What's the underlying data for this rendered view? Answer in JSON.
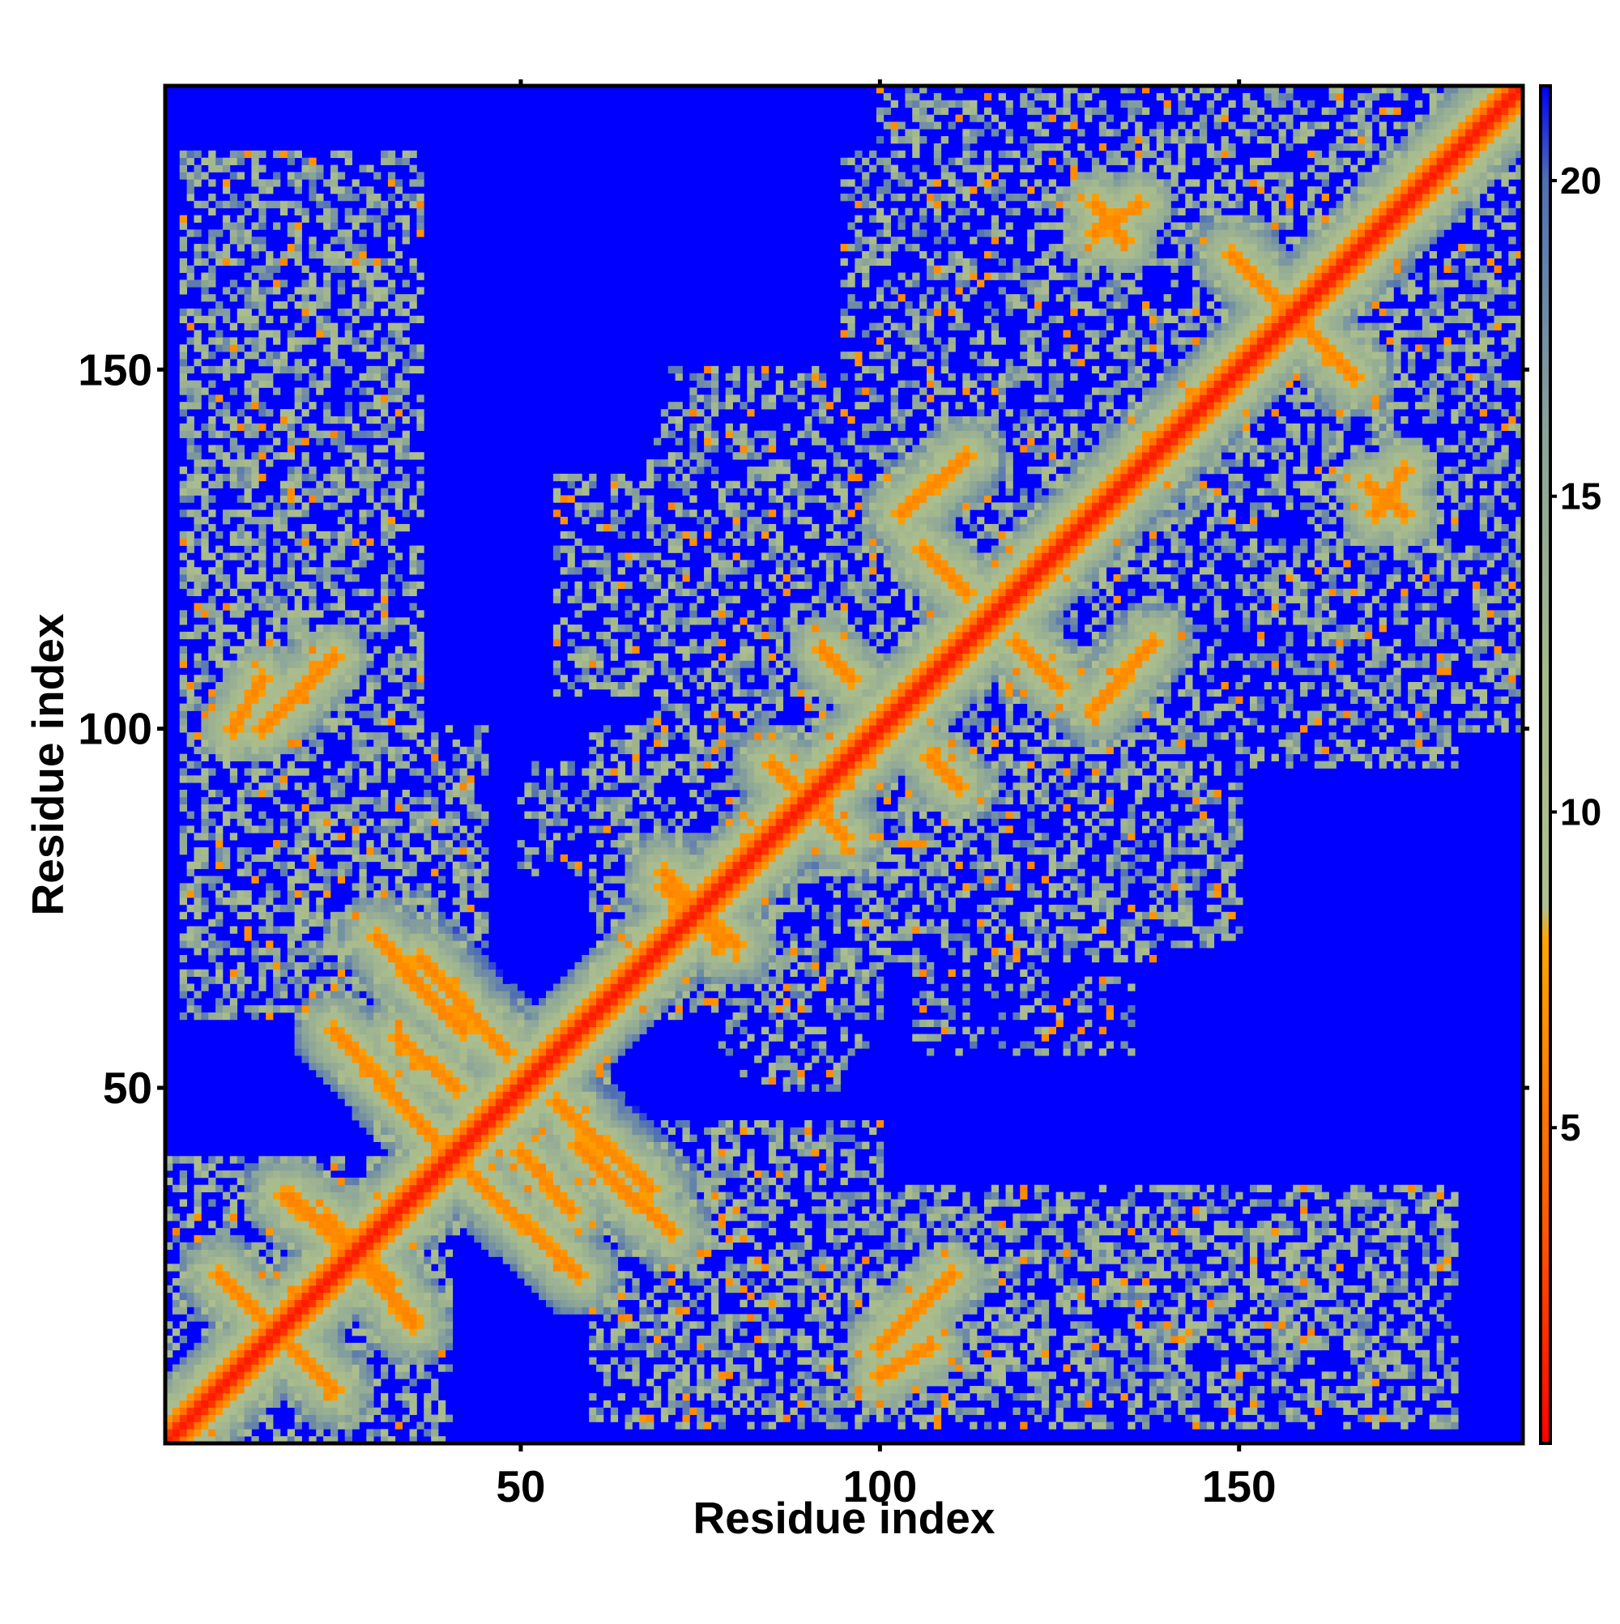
{
  "chart_data": {
    "type": "heatmap",
    "title": "",
    "xlabel": "Residue index",
    "ylabel": "Residue index",
    "n_residues": 189,
    "xlim": [
      1,
      189
    ],
    "ylim": [
      1,
      189
    ],
    "x_ticks": [
      50,
      100,
      150
    ],
    "y_ticks": [
      50,
      100,
      150
    ],
    "colorbar": {
      "range": [
        0,
        21.5
      ],
      "ticks": [
        5,
        10,
        15,
        20
      ],
      "stops": [
        {
          "value": 0,
          "color": "#ff0000"
        },
        {
          "value": 3.5,
          "color": "#ff5a00"
        },
        {
          "value": 8,
          "color": "#ffa500"
        },
        {
          "value": 8.5,
          "color": "#b0c090"
        },
        {
          "value": 12,
          "color": "#a8bb8c"
        },
        {
          "value": 16,
          "color": "#8aa49a"
        },
        {
          "value": 20,
          "color": "#4f6fb3"
        },
        {
          "value": 21.5,
          "color": "#0000ff"
        }
      ]
    },
    "background_value": 21.5,
    "background_color": "#0000ff",
    "diagonal_band": {
      "start": 1,
      "end": 189,
      "halfwidth": 2.5
    },
    "contact_segments": [
      {
        "from": [
          23,
          32
        ],
        "to": [
          35,
          17
        ],
        "halfwidth": 3
      },
      {
        "from": [
          10,
          22
        ],
        "to": [
          24,
          8
        ],
        "halfwidth": 3
      },
      {
        "from": [
          28,
          26
        ],
        "to": [
          35,
          18
        ],
        "halfwidth": 3
      },
      {
        "from": [
          43,
          38
        ],
        "to": [
          58,
          24
        ],
        "halfwidth": 3
      },
      {
        "from": [
          62,
          38
        ],
        "to": [
          71,
          30
        ],
        "halfwidth": 3
      },
      {
        "from": [
          55,
          48
        ],
        "to": [
          68,
          36
        ],
        "halfwidth": 4
      },
      {
        "from": [
          34,
          66
        ],
        "to": [
          42,
          58
        ],
        "halfwidth": 3
      },
      {
        "from": [
          33,
          57
        ],
        "to": [
          41,
          50
        ],
        "halfwidth": 3
      },
      {
        "from": [
          70,
          78
        ],
        "to": [
          80,
          70
        ],
        "halfwidth": 3
      },
      {
        "from": [
          87,
          93
        ],
        "to": [
          95,
          85
        ],
        "halfwidth": 3
      },
      {
        "from": [
          100,
          14
        ],
        "to": [
          110,
          24
        ],
        "halfwidth": 2
      },
      {
        "from": [
          10,
          100
        ],
        "to": [
          14,
          107
        ],
        "halfwidth": 2
      },
      {
        "from": [
          103,
          130
        ],
        "to": [
          112,
          138
        ],
        "halfwidth": 3
      },
      {
        "from": [
          131,
          104
        ],
        "to": [
          138,
          112
        ],
        "halfwidth": 3
      },
      {
        "from": [
          130,
          169
        ],
        "to": [
          136,
          173
        ],
        "halfwidth": 2
      },
      {
        "from": [
          149,
          166
        ],
        "to": [
          155,
          160
        ],
        "halfwidth": 3
      },
      {
        "from": [
          155,
          160
        ],
        "to": [
          163,
          152
        ],
        "halfwidth": 3
      },
      {
        "from": [
          168,
          134
        ],
        "to": [
          173,
          130
        ],
        "halfwidth": 2
      },
      {
        "from": [
          92,
          111
        ],
        "to": [
          96,
          107
        ],
        "halfwidth": 2
      },
      {
        "from": [
          119,
          112
        ],
        "to": [
          125,
          106
        ],
        "halfwidth": 2
      }
    ],
    "contact_regions": [
      {
        "x": [
          1,
          40
        ],
        "y": [
          1,
          40
        ],
        "density": 0.45
      },
      {
        "x": [
          30,
          62
        ],
        "y": [
          30,
          62
        ],
        "density": 0.45
      },
      {
        "x": [
          60,
          100
        ],
        "y": [
          60,
          100
        ],
        "density": 0.45
      },
      {
        "x": [
          95,
          140
        ],
        "y": [
          95,
          140
        ],
        "density": 0.45
      },
      {
        "x": [
          130,
          189
        ],
        "y": [
          130,
          189
        ],
        "density": 0.45
      },
      {
        "x": [
          3,
          36
        ],
        "y": [
          60,
          180
        ],
        "density": 0.5
      },
      {
        "x": [
          60,
          180
        ],
        "y": [
          3,
          36
        ],
        "density": 0.5
      },
      {
        "x": [
          30,
          45
        ],
        "y": [
          70,
          100
        ],
        "density": 0.5
      },
      {
        "x": [
          70,
          100
        ],
        "y": [
          30,
          45
        ],
        "density": 0.5
      },
      {
        "x": [
          50,
          100
        ],
        "y": [
          25,
          42
        ],
        "density": 0.5
      },
      {
        "x": [
          25,
          42
        ],
        "y": [
          50,
          100
        ],
        "density": 0.5
      },
      {
        "x": [
          70,
          100
        ],
        "y": [
          10,
          30
        ],
        "density": 0.4
      },
      {
        "x": [
          10,
          30
        ],
        "y": [
          70,
          100
        ],
        "density": 0.4
      },
      {
        "x": [
          100,
          145
        ],
        "y": [
          12,
          35
        ],
        "density": 0.35
      },
      {
        "x": [
          12,
          35
        ],
        "y": [
          100,
          145
        ],
        "density": 0.35
      },
      {
        "x": [
          145,
          175
        ],
        "y": [
          12,
          25
        ],
        "density": 0.2
      },
      {
        "x": [
          70,
          110
        ],
        "y": [
          95,
          150
        ],
        "density": 0.45
      },
      {
        "x": [
          95,
          150
        ],
        "y": [
          70,
          110
        ],
        "density": 0.45
      },
      {
        "x": [
          100,
          150
        ],
        "y": [
          140,
          189
        ],
        "density": 0.4
      },
      {
        "x": [
          140,
          189
        ],
        "y": [
          100,
          150
        ],
        "density": 0.4
      },
      {
        "x": [
          120,
          180
        ],
        "y": [
          95,
          110
        ],
        "density": 0.4
      },
      {
        "x": [
          95,
          110
        ],
        "y": [
          120,
          180
        ],
        "density": 0.4
      },
      {
        "x": [
          50,
          60
        ],
        "y": [
          80,
          95
        ],
        "density": 0.35
      },
      {
        "x": [
          80,
          95
        ],
        "y": [
          50,
          60
        ],
        "density": 0.35
      },
      {
        "x": [
          78,
          98
        ],
        "y": [
          55,
          65
        ],
        "density": 0.35
      },
      {
        "x": [
          150,
          185
        ],
        "y": [
          125,
          145
        ],
        "density": 0.35
      },
      {
        "x": [
          125,
          145
        ],
        "y": [
          150,
          185
        ],
        "density": 0.35
      },
      {
        "x": [
          55,
          85
        ],
        "y": [
          105,
          135
        ],
        "density": 0.4
      },
      {
        "x": [
          105,
          135
        ],
        "y": [
          55,
          85
        ],
        "density": 0.3
      },
      {
        "x": [
          100,
          140
        ],
        "y": [
          68,
          95
        ],
        "density": 0.4
      },
      {
        "x": [
          68,
          95
        ],
        "y": [
          100,
          140
        ],
        "density": 0.4
      }
    ]
  }
}
